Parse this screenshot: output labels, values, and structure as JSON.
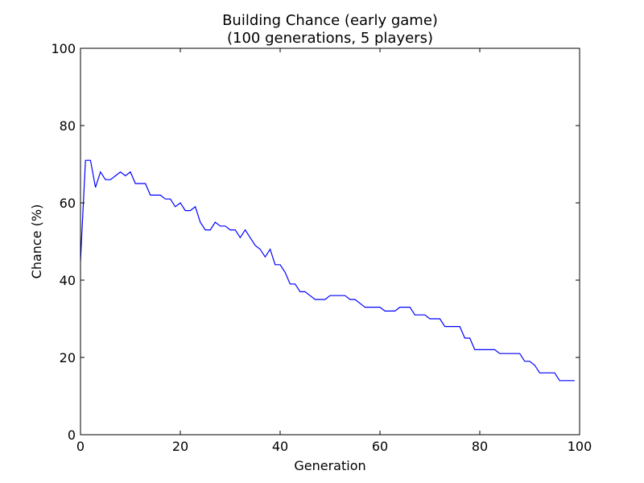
{
  "chart_data": {
    "type": "line",
    "title": "Building Chance (early game)",
    "subtitle": "(100 generations, 5 players)",
    "xlabel": "Generation",
    "ylabel": "Chance (%)",
    "xlim": [
      0,
      100
    ],
    "ylim": [
      0,
      100
    ],
    "xticks": [
      0,
      20,
      40,
      60,
      80,
      100
    ],
    "yticks": [
      0,
      20,
      40,
      60,
      80,
      100
    ],
    "grid": false,
    "line_color": "#0000ff",
    "x": [
      0,
      1,
      2,
      3,
      4,
      5,
      6,
      7,
      8,
      9,
      10,
      11,
      12,
      13,
      14,
      15,
      16,
      17,
      18,
      19,
      20,
      21,
      22,
      23,
      24,
      25,
      26,
      27,
      28,
      29,
      30,
      31,
      32,
      33,
      34,
      35,
      36,
      37,
      38,
      39,
      40,
      41,
      42,
      43,
      44,
      45,
      46,
      47,
      48,
      49,
      50,
      51,
      52,
      53,
      54,
      55,
      56,
      57,
      58,
      59,
      60,
      61,
      62,
      63,
      64,
      65,
      66,
      67,
      68,
      69,
      70,
      71,
      72,
      73,
      74,
      75,
      76,
      77,
      78,
      79,
      80,
      81,
      82,
      83,
      84,
      85,
      86,
      87,
      88,
      89,
      90,
      91,
      92,
      93,
      94,
      95,
      96,
      97,
      98,
      99
    ],
    "values": [
      45,
      71,
      71,
      64,
      68,
      66,
      66,
      67,
      68,
      67,
      68,
      65,
      65,
      65,
      62,
      62,
      62,
      61,
      61,
      59,
      60,
      58,
      58,
      59,
      55,
      53,
      53,
      55,
      54,
      54,
      53,
      53,
      51,
      53,
      51,
      49,
      48,
      46,
      48,
      44,
      44,
      42,
      39,
      39,
      37,
      37,
      36,
      35,
      35,
      35,
      36,
      36,
      36,
      36,
      35,
      35,
      34,
      33,
      33,
      33,
      33,
      32,
      32,
      32,
      33,
      33,
      33,
      31,
      31,
      31,
      30,
      30,
      30,
      28,
      28,
      28,
      28,
      25,
      25,
      22,
      22,
      22,
      22,
      22,
      21,
      21,
      21,
      21,
      21,
      19,
      19,
      18,
      16,
      16,
      16,
      16,
      14,
      14,
      14,
      14
    ]
  }
}
